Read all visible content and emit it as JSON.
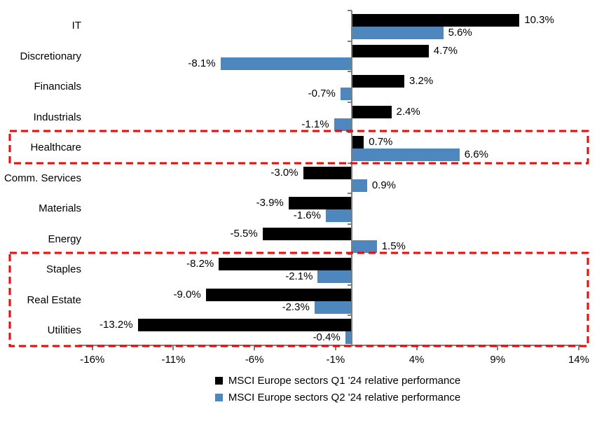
{
  "chart_data": {
    "type": "bar",
    "orientation": "horizontal",
    "title": "",
    "categories": [
      "IT",
      "Discretionary",
      "Financials",
      "Industrials",
      "Healthcare",
      "Comm. Services",
      "Materials",
      "Energy",
      "Staples",
      "Real Estate",
      "Utilities"
    ],
    "series": [
      {
        "name": "MSCI Europe sectors Q1 '24 relative performance",
        "color": "#000000",
        "values": [
          10.3,
          4.7,
          3.2,
          2.4,
          0.7,
          -3.0,
          -3.9,
          -5.5,
          -8.2,
          -9.0,
          -13.2
        ]
      },
      {
        "name": "MSCI Europe sectors Q2 '24 relative performance",
        "color": "#4e86be",
        "values": [
          5.6,
          -8.1,
          -0.7,
          -1.1,
          6.6,
          0.9,
          -1.6,
          1.5,
          -2.1,
          -2.3,
          -0.4
        ]
      }
    ],
    "data_label_format": "one_decimal_percent",
    "x_ticks": [
      {
        "label": "-16%",
        "value": -16
      },
      {
        "label": "-11%",
        "value": -11
      },
      {
        "label": "-6%",
        "value": -6
      },
      {
        "label": "-1%",
        "value": -1
      },
      {
        "label": "4%",
        "value": 4
      },
      {
        "label": "9%",
        "value": 9
      },
      {
        "label": "14%",
        "value": 14
      }
    ],
    "xlim": [
      -17,
      14
    ],
    "grid": false,
    "legend_position": "bottom",
    "axis_color": "#7f7f7f",
    "highlight_color": "#fd0000",
    "highlights": [
      {
        "name": "highlight-healthcare",
        "categories": [
          "Healthcare"
        ]
      },
      {
        "name": "highlight-staples-realestate-utilities",
        "categories": [
          "Staples",
          "Real Estate",
          "Utilities"
        ]
      }
    ]
  }
}
